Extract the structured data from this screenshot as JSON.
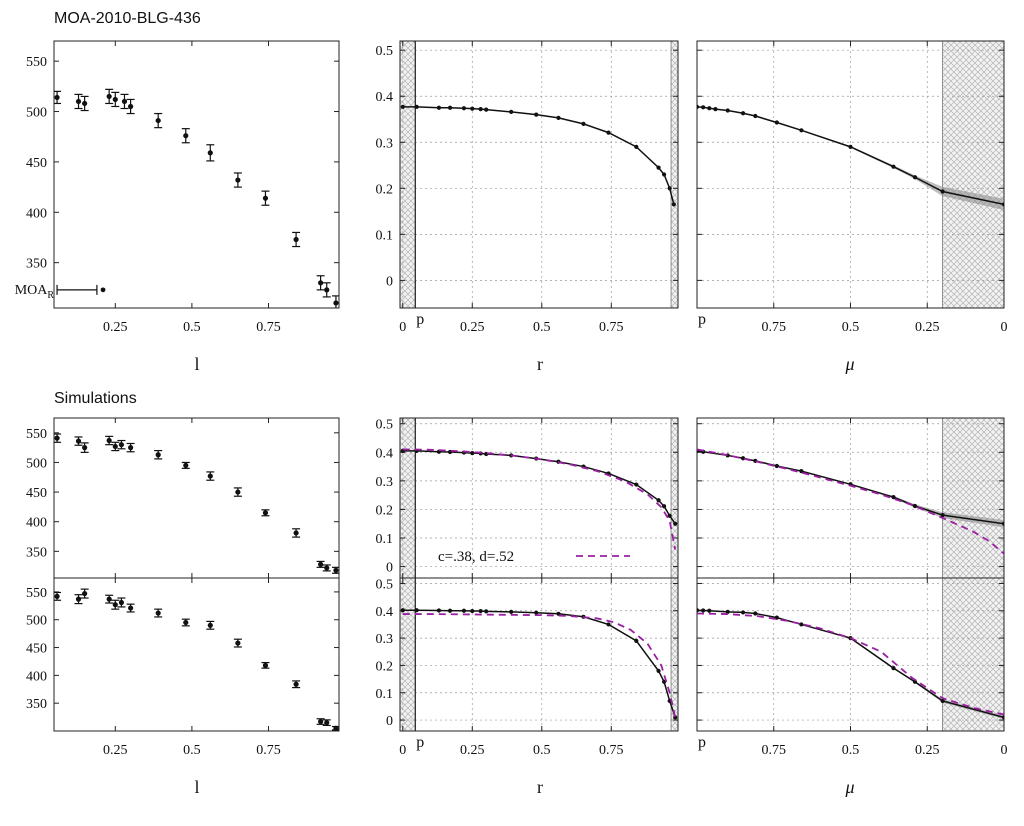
{
  "sections": {
    "top_title": "MOA-2010-BLG-436",
    "bottom_title": "Simulations"
  },
  "chart_data": [
    {
      "id": "top-left",
      "type": "scatter",
      "xlabel": "l",
      "ylabel": "",
      "xlim": [
        0.05,
        0.98
      ],
      "ylim": [
        305,
        570
      ],
      "xticks": [
        0.25,
        0.5,
        0.75
      ],
      "xtick_labels": [
        "0.25",
        "0.5",
        "0.75"
      ],
      "yticks": [
        350,
        400,
        450,
        500,
        550
      ],
      "ytick_labels": [
        "350",
        "400",
        "450",
        "500",
        "550"
      ],
      "grid": false,
      "series": [
        {
          "x": [
            0.06,
            0.13,
            0.15,
            0.23,
            0.25,
            0.28,
            0.3,
            0.39,
            0.48,
            0.56,
            0.65,
            0.74,
            0.84,
            0.92,
            0.94,
            0.97
          ],
          "y": [
            514,
            510,
            508,
            515,
            512,
            510,
            505,
            491,
            476,
            459,
            432,
            414,
            373,
            330,
            323,
            310
          ],
          "err": [
            6,
            7,
            7,
            7,
            7,
            7,
            7,
            7,
            7,
            8,
            7,
            7,
            7,
            7,
            7,
            7
          ]
        }
      ],
      "annotations": [
        {
          "text": "MOA",
          "sub": "R",
          "x": 0.21,
          "y": 323,
          "xerr_low": 0.06,
          "xerr_high": 0.19
        }
      ]
    },
    {
      "id": "top-mid",
      "type": "line",
      "xlabel": "r",
      "ylabel": "",
      "xlim": [
        -0.01,
        0.99
      ],
      "ylim": [
        -0.06,
        0.52
      ],
      "xticks": [
        0,
        0.25,
        0.5,
        0.75
      ],
      "xtick_labels": [
        "0",
        "0.25",
        "0.5",
        "0.75"
      ],
      "yticks": [
        0,
        0.1,
        0.2,
        0.3,
        0.4,
        0.5
      ],
      "ytick_labels": [
        "0",
        "0.1",
        "0.2",
        "0.3",
        "0.4",
        "0.5"
      ],
      "grid": true,
      "hatch": [
        [
          -0.01,
          0.045
        ],
        [
          0.965,
          0.99
        ]
      ],
      "vline": {
        "x": 0.045,
        "label": "p"
      },
      "series": [
        {
          "x": [
            0.0,
            0.05,
            0.13,
            0.17,
            0.22,
            0.25,
            0.28,
            0.3,
            0.39,
            0.48,
            0.56,
            0.65,
            0.74,
            0.84,
            0.92,
            0.94,
            0.96,
            0.975
          ],
          "y": [
            0.377,
            0.377,
            0.375,
            0.375,
            0.374,
            0.373,
            0.372,
            0.371,
            0.366,
            0.36,
            0.353,
            0.34,
            0.321,
            0.29,
            0.245,
            0.23,
            0.2,
            0.165
          ]
        }
      ]
    },
    {
      "id": "top-right",
      "type": "line",
      "xlabel": "μ",
      "ylabel": "",
      "xlim": [
        1.0,
        0.0
      ],
      "ylim": [
        -0.06,
        0.52
      ],
      "xticks": [
        0.75,
        0.5,
        0.25,
        0
      ],
      "xtick_labels": [
        "0.75",
        "0.5",
        "0.25",
        "0"
      ],
      "yticks": [
        0,
        0.1,
        0.2,
        0.3,
        0.4,
        0.5
      ],
      "grid": true,
      "hatch": [
        [
          0.2,
          0.0
        ]
      ],
      "corner_label": "p",
      "series": [
        {
          "x": [
            1.0,
            0.98,
            0.96,
            0.94,
            0.9,
            0.85,
            0.81,
            0.74,
            0.66,
            0.5,
            0.36,
            0.29,
            0.2,
            0.0
          ],
          "y": [
            0.377,
            0.376,
            0.374,
            0.372,
            0.369,
            0.363,
            0.357,
            0.343,
            0.326,
            0.29,
            0.247,
            0.224,
            0.193,
            0.165
          ],
          "band": [
            0,
            0,
            0,
            0,
            0,
            0,
            0,
            0,
            0,
            0.002,
            0.003,
            0.004,
            0.01,
            0.012
          ]
        }
      ]
    },
    {
      "id": "sim1-left",
      "type": "scatter",
      "xlabel": "",
      "ylabel": "",
      "xlim": [
        0.05,
        0.98
      ],
      "ylim": [
        305,
        575
      ],
      "xticks": [
        0.25,
        0.5,
        0.75
      ],
      "xtick_labels": [],
      "yticks": [
        350,
        400,
        450,
        500,
        550
      ],
      "ytick_labels": [
        "350",
        "400",
        "450",
        "500",
        "550"
      ],
      "grid": false,
      "series": [
        {
          "x": [
            0.06,
            0.13,
            0.15,
            0.23,
            0.25,
            0.27,
            0.3,
            0.39,
            0.48,
            0.56,
            0.65,
            0.74,
            0.84,
            0.92,
            0.94,
            0.97
          ],
          "y": [
            541,
            536,
            525,
            537,
            527,
            530,
            525,
            513,
            495,
            477,
            450,
            415,
            381,
            328,
            322,
            318
          ],
          "err": [
            7,
            7,
            8,
            7,
            7,
            7,
            7,
            7,
            5,
            7,
            7,
            5,
            7,
            5,
            5,
            5
          ]
        }
      ]
    },
    {
      "id": "sim1-mid",
      "type": "line",
      "xlabel": "",
      "ylabel": "",
      "xlim": [
        -0.01,
        0.99
      ],
      "ylim": [
        -0.04,
        0.52
      ],
      "xticks": [
        0,
        0.25,
        0.5,
        0.75
      ],
      "xtick_labels": [],
      "yticks": [
        0,
        0.1,
        0.2,
        0.3,
        0.4,
        0.5
      ],
      "ytick_labels": [
        "0",
        "0.1",
        "0.2",
        "0.3",
        "0.4",
        "0.5"
      ],
      "grid": true,
      "hatch": [
        [
          -0.01,
          0.045
        ],
        [
          0.965,
          0.99
        ]
      ],
      "vline": {
        "x": 0.045
      },
      "legend": {
        "text": "c=.38, d=.52"
      },
      "series": [
        {
          "x": [
            0.0,
            0.05,
            0.13,
            0.17,
            0.22,
            0.25,
            0.28,
            0.3,
            0.39,
            0.48,
            0.56,
            0.65,
            0.74,
            0.84,
            0.92,
            0.94,
            0.96,
            0.98
          ],
          "y": [
            0.405,
            0.405,
            0.402,
            0.401,
            0.399,
            0.397,
            0.396,
            0.394,
            0.389,
            0.378,
            0.367,
            0.35,
            0.326,
            0.287,
            0.232,
            0.211,
            0.178,
            0.15
          ]
        },
        {
          "dashed": true,
          "x": [
            0.0,
            0.1,
            0.2,
            0.3,
            0.4,
            0.5,
            0.6,
            0.7,
            0.8,
            0.88,
            0.93,
            0.96,
            0.98
          ],
          "y": [
            0.41,
            0.409,
            0.404,
            0.397,
            0.388,
            0.375,
            0.358,
            0.334,
            0.298,
            0.253,
            0.208,
            0.16,
            0.06
          ]
        }
      ]
    },
    {
      "id": "sim1-right",
      "type": "line",
      "xlabel": "",
      "ylabel": "",
      "xlim": [
        1.0,
        0.0
      ],
      "ylim": [
        -0.04,
        0.52
      ],
      "xticks": [
        0.75,
        0.5,
        0.25,
        0
      ],
      "xtick_labels": [],
      "yticks": [
        0,
        0.1,
        0.2,
        0.3,
        0.4,
        0.5
      ],
      "grid": true,
      "hatch": [
        [
          0.2,
          0.0
        ]
      ],
      "series": [
        {
          "x": [
            1.0,
            0.98,
            0.9,
            0.85,
            0.81,
            0.74,
            0.66,
            0.5,
            0.36,
            0.29,
            0.2,
            0.0
          ],
          "y": [
            0.405,
            0.402,
            0.389,
            0.379,
            0.37,
            0.352,
            0.334,
            0.288,
            0.243,
            0.212,
            0.18,
            0.15
          ],
          "band": [
            0,
            0,
            0,
            0,
            0,
            0,
            0,
            0.002,
            0.004,
            0.006,
            0.01,
            0.013
          ]
        },
        {
          "dashed": true,
          "x": [
            1.0,
            0.9,
            0.8,
            0.7,
            0.6,
            0.5,
            0.4,
            0.3,
            0.2,
            0.1,
            0.05,
            0.0
          ],
          "y": [
            0.41,
            0.39,
            0.366,
            0.34,
            0.312,
            0.283,
            0.252,
            0.216,
            0.17,
            0.122,
            0.09,
            0.045
          ]
        }
      ]
    },
    {
      "id": "sim2-left",
      "type": "scatter",
      "xlabel": "l",
      "ylabel": "",
      "xlim": [
        0.05,
        0.98
      ],
      "ylim": [
        300,
        575
      ],
      "xticks": [
        0.25,
        0.5,
        0.75
      ],
      "xtick_labels": [
        "0.25",
        "0.5",
        "0.75"
      ],
      "yticks": [
        350,
        400,
        450,
        500,
        550
      ],
      "ytick_labels": [
        "350",
        "400",
        "450",
        "500",
        "550"
      ],
      "grid": false,
      "series": [
        {
          "x": [
            0.06,
            0.13,
            0.15,
            0.23,
            0.25,
            0.27,
            0.3,
            0.39,
            0.48,
            0.56,
            0.65,
            0.74,
            0.84,
            0.92,
            0.94,
            0.97
          ],
          "y": [
            542,
            537,
            547,
            537,
            527,
            531,
            521,
            512,
            495,
            490,
            458,
            418,
            384,
            317,
            315,
            305
          ],
          "err": [
            7,
            8,
            8,
            7,
            8,
            8,
            7,
            7,
            6,
            7,
            7,
            5,
            6,
            5,
            5,
            3
          ]
        }
      ]
    },
    {
      "id": "sim2-mid",
      "type": "line",
      "xlabel": "r",
      "ylabel": "",
      "xlim": [
        -0.01,
        0.99
      ],
      "ylim": [
        -0.04,
        0.52
      ],
      "xticks": [
        0,
        0.25,
        0.5,
        0.75
      ],
      "xtick_labels": [
        "0",
        "0.25",
        "0.5",
        "0.75"
      ],
      "yticks": [
        0,
        0.1,
        0.2,
        0.3,
        0.4,
        0.5
      ],
      "ytick_labels": [
        "0",
        "0.1",
        "0.2",
        "0.3",
        "0.4",
        "0.5"
      ],
      "grid": true,
      "hatch": [
        [
          -0.01,
          0.045
        ],
        [
          0.965,
          0.99
        ]
      ],
      "vline": {
        "x": 0.045,
        "label": "p"
      },
      "series": [
        {
          "x": [
            0.0,
            0.05,
            0.13,
            0.17,
            0.22,
            0.25,
            0.28,
            0.3,
            0.39,
            0.48,
            0.56,
            0.65,
            0.74,
            0.84,
            0.92,
            0.94,
            0.96,
            0.98
          ],
          "y": [
            0.402,
            0.402,
            0.401,
            0.4,
            0.4,
            0.399,
            0.399,
            0.398,
            0.396,
            0.393,
            0.389,
            0.378,
            0.35,
            0.29,
            0.18,
            0.14,
            0.07,
            0.01
          ]
        },
        {
          "dashed": true,
          "x": [
            0.0,
            0.1,
            0.2,
            0.3,
            0.4,
            0.5,
            0.6,
            0.7,
            0.76,
            0.82,
            0.88,
            0.93,
            0.96,
            0.98
          ],
          "y": [
            0.388,
            0.388,
            0.387,
            0.386,
            0.385,
            0.384,
            0.381,
            0.372,
            0.358,
            0.33,
            0.28,
            0.2,
            0.1,
            0.01
          ]
        }
      ]
    },
    {
      "id": "sim2-right",
      "type": "line",
      "xlabel": "μ",
      "ylabel": "",
      "xlim": [
        1.0,
        0.0
      ],
      "ylim": [
        -0.04,
        0.52
      ],
      "xticks": [
        0.75,
        0.5,
        0.25,
        0
      ],
      "xtick_labels": [
        "0.75",
        "0.5",
        "0.25",
        "0"
      ],
      "yticks": [
        0,
        0.1,
        0.2,
        0.3,
        0.4,
        0.5
      ],
      "grid": true,
      "hatch": [
        [
          0.2,
          0.0
        ]
      ],
      "corner_label": "p",
      "series": [
        {
          "x": [
            1.0,
            0.98,
            0.96,
            0.9,
            0.85,
            0.81,
            0.74,
            0.66,
            0.5,
            0.36,
            0.29,
            0.2,
            0.0
          ],
          "y": [
            0.402,
            0.401,
            0.4,
            0.396,
            0.394,
            0.39,
            0.375,
            0.35,
            0.3,
            0.19,
            0.14,
            0.07,
            0.01
          ],
          "band": [
            0,
            0,
            0,
            0,
            0,
            0,
            0,
            0,
            0.002,
            0.003,
            0.004,
            0.006,
            0.006
          ]
        },
        {
          "dashed": true,
          "x": [
            1.0,
            0.9,
            0.8,
            0.7,
            0.6,
            0.5,
            0.4,
            0.3,
            0.2,
            0.1,
            0.0
          ],
          "y": [
            0.39,
            0.388,
            0.38,
            0.362,
            0.336,
            0.3,
            0.25,
            0.155,
            0.08,
            0.045,
            0.02
          ]
        }
      ]
    }
  ]
}
